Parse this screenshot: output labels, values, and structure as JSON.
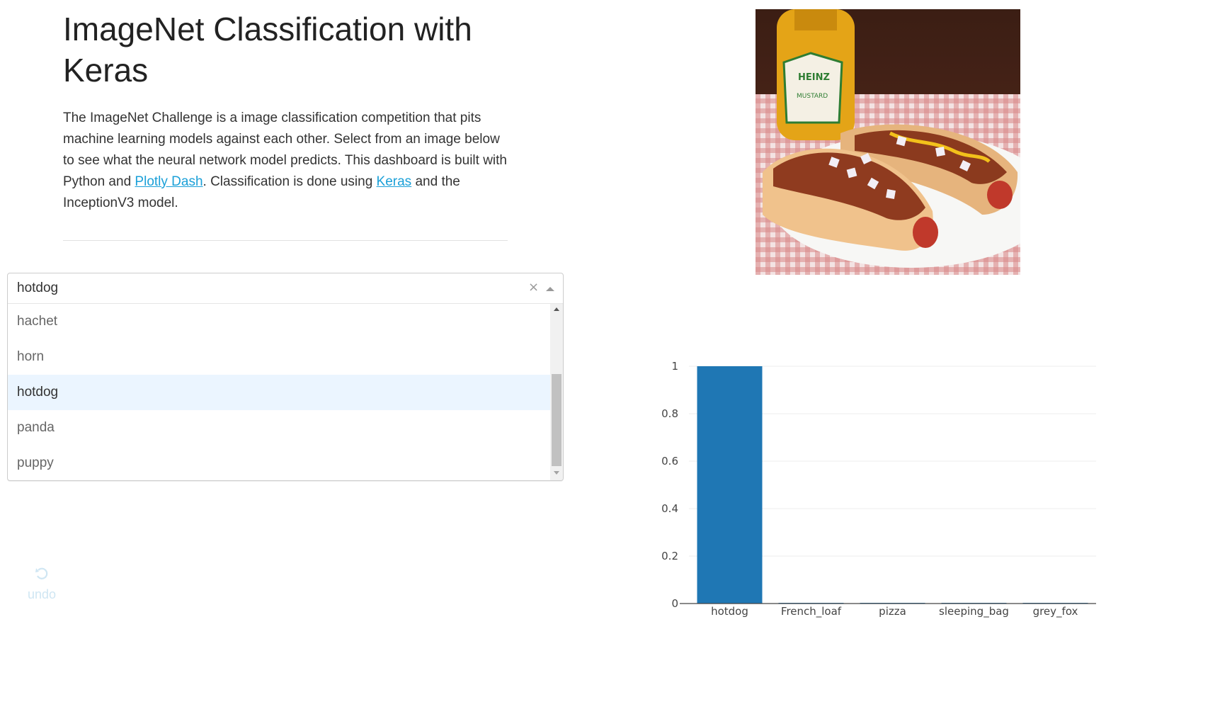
{
  "header": {
    "title": "ImageNet Classification with Keras"
  },
  "description": {
    "part1": "The ImageNet Challenge is a image classification competition that pits machine learning models against each other. Select from an image below to see what the neural network model predicts. This dashboard is built with Python and ",
    "link1": "Plotly Dash",
    "part2": ". Classification is done using ",
    "link2": "Keras",
    "part3": " and the InceptionV3 model."
  },
  "dropdown": {
    "value": "hotdog",
    "clear_glyph": "×",
    "options": [
      "hachet",
      "horn",
      "hotdog",
      "panda",
      "puppy"
    ],
    "selected_index": 2
  },
  "undo": {
    "label": "undo"
  },
  "colors": {
    "bar": "#1f77b4",
    "link": "#1ba0d8",
    "selected_option_bg": "#ebf5ff"
  },
  "chart_data": {
    "type": "bar",
    "categories": [
      "hotdog",
      "French_loaf",
      "pizza",
      "sleeping_bag",
      "grey_fox"
    ],
    "values": [
      1.0,
      0.002,
      0.001,
      0.001,
      0.001
    ],
    "title": "",
    "xlabel": "",
    "ylabel": "",
    "ylim": [
      0,
      1
    ],
    "yticks": [
      0,
      0.2,
      0.4,
      0.6,
      0.8,
      1
    ],
    "ytick_labels": [
      "0",
      "0.2",
      "0.4",
      "0.6",
      "0.8",
      "1"
    ],
    "grid": true
  }
}
